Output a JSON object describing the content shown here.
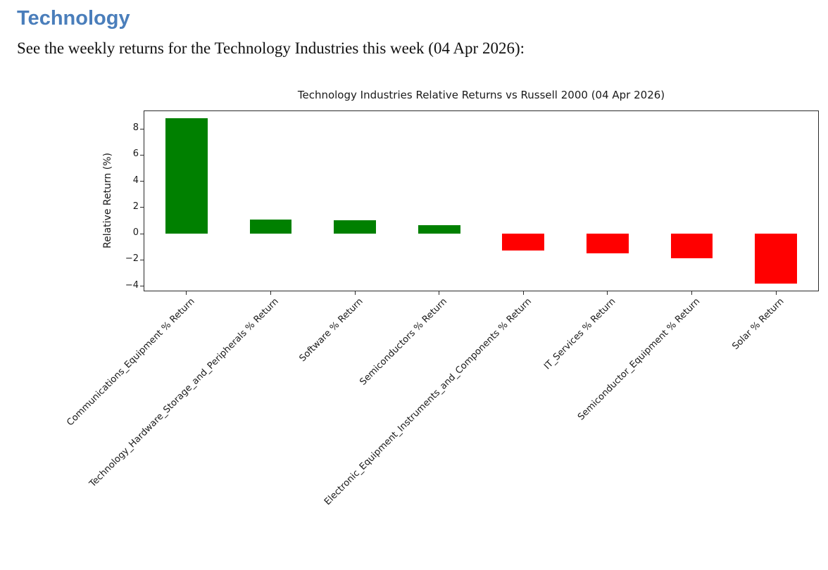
{
  "page": {
    "heading": "Technology",
    "heading_color": "#4a7ebb",
    "intro": "See the weekly returns for the Technology Industries this week (04 Apr 2026):"
  },
  "chart_data": {
    "type": "bar",
    "title": "Technology Industries Relative Returns vs Russell 2000 (04 Apr 2026)",
    "xlabel": "",
    "ylabel": "Relative Return (%)",
    "categories": [
      "Communications_Equipment % Return",
      "Technology_Hardware_Storage_and_Peripherals % Return",
      "Software % Return",
      "Semiconductors % Return",
      "Electronic_Equipment_Instruments_and_Components % Return",
      "IT_Services % Return",
      "Semiconductor_Equipment % Return",
      "Solar % Return"
    ],
    "values": [
      8.8,
      1.1,
      1.05,
      0.65,
      -1.3,
      -1.5,
      -1.9,
      -3.8
    ],
    "positive_color": "#008000",
    "negative_color": "#ff0000",
    "yticks": [
      -4,
      -2,
      0,
      2,
      4,
      6,
      8
    ],
    "ylim": [
      -4.35,
      9.35
    ],
    "grid": false,
    "legend": null
  }
}
